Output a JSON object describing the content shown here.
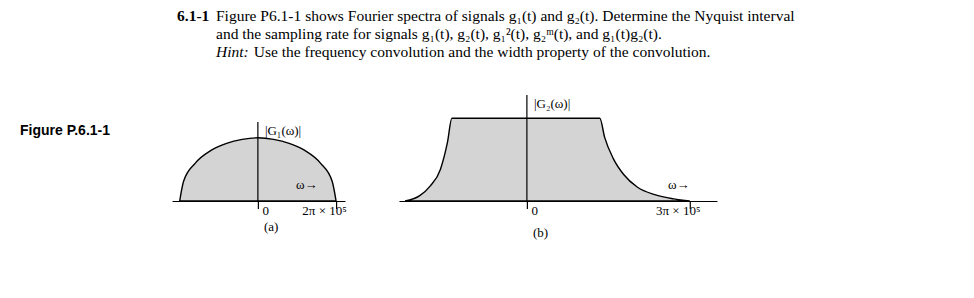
{
  "problem": {
    "number": "6.1-1",
    "statement": [
      "Figure P6.1-1 shows Fourier spectra of signals g₁(t) and g₂(t). Determine the Nyquist interval",
      "and the sampling rate for signals g₁(t), g₂(t), g₁²(t), g₂ᵐ(t), and g₁(t)g₂(t)."
    ],
    "hint_label": "Hint:",
    "hint": "Use the frequency convolution and the width property of the convolution."
  },
  "figure": {
    "label": "Figure P.6.1-1"
  },
  "chart_data": [
    {
      "type": "area",
      "y_label": "|G₁(ω)|",
      "x_label": "ω→",
      "caption": "(a)",
      "color": "#d4d4d4",
      "x": [
        -628318.5,
        -596903,
        -502655,
        -376991,
        -251327,
        -125664,
        0,
        125664,
        251327,
        376991,
        502655,
        596903,
        628318.5
      ],
      "values": [
        0,
        0.25,
        0.48,
        0.64,
        0.73,
        0.78,
        0.8,
        0.78,
        0.73,
        0.64,
        0.48,
        0.25,
        0
      ],
      "xlim": [
        -690000,
        700000
      ],
      "ylim": [
        0,
        1
      ],
      "xticks": [
        0,
        {
          "value": 628318.5,
          "label": "2π × 10⁵"
        }
      ],
      "tick_labels": "x"
    },
    {
      "type": "area",
      "y_label": "|G₂(ω)|",
      "x_label": "ω→",
      "caption": "(b)",
      "color": "#d4d4d4",
      "x": [
        -705000,
        -620000,
        -560000,
        -500000,
        -460000,
        -434000,
        0,
        422000,
        450000,
        500000,
        560000,
        640000,
        740000,
        850000,
        942477.8
      ],
      "values": [
        0,
        0.05,
        0.14,
        0.3,
        0.55,
        0.78,
        0.78,
        0.78,
        0.6,
        0.4,
        0.25,
        0.13,
        0.06,
        0.02,
        0
      ],
      "xlim": [
        -740000,
        1100000
      ],
      "ylim": [
        0,
        1
      ],
      "xticks": [
        0,
        {
          "value": 942477.8,
          "label": "3π × 10⁵"
        }
      ],
      "tick_labels": "x"
    }
  ]
}
